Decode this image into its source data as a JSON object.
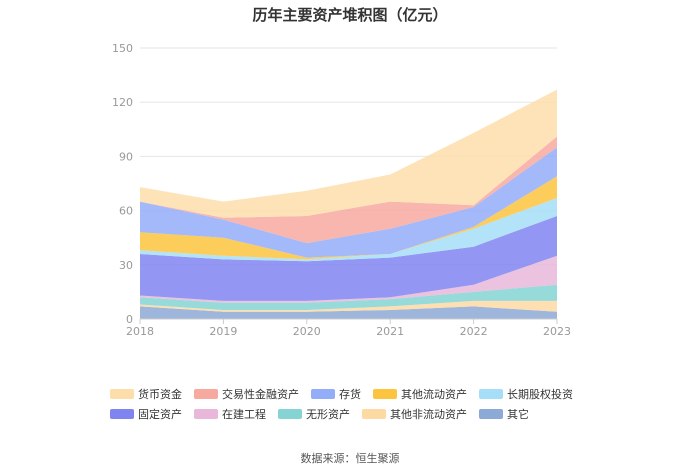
{
  "chart_data": {
    "type": "area",
    "stacked": true,
    "title": "历年主要资产堆积图（亿元）",
    "x": [
      "2018",
      "2019",
      "2020",
      "2021",
      "2022",
      "2023"
    ],
    "y_ticks": [
      "0",
      "30",
      "60",
      "90",
      "120",
      "150"
    ],
    "ylim": [
      0,
      150
    ],
    "legend_position": "bottom",
    "series": [
      {
        "name": "其它",
        "color": "#8DA9D6",
        "values": [
          7,
          4,
          4,
          5,
          7,
          4
        ]
      },
      {
        "name": "其他非流动资产",
        "color": "#FDD9A3",
        "values": [
          1,
          1,
          1,
          2,
          3,
          6
        ]
      },
      {
        "name": "无形资产",
        "color": "#85D3D3",
        "values": [
          4,
          4,
          4,
          4,
          5,
          9
        ]
      },
      {
        "name": "在建工程",
        "color": "#E8B7D9",
        "values": [
          1,
          1,
          1,
          1,
          4,
          16
        ]
      },
      {
        "name": "固定资产",
        "color": "#8084F0",
        "values": [
          23,
          23,
          22,
          22,
          21,
          22
        ]
      },
      {
        "name": "长期股权投资",
        "color": "#A6DEF8",
        "values": [
          2,
          2,
          1,
          2,
          10,
          10
        ]
      },
      {
        "name": "其他流动资产",
        "color": "#FDC440",
        "values": [
          10,
          10,
          1,
          0,
          1,
          12
        ]
      },
      {
        "name": "存货",
        "color": "#93ADF8",
        "values": [
          17,
          10,
          8,
          14,
          11,
          16
        ]
      },
      {
        "name": "交易性金融资产",
        "color": "#F7A9A0",
        "values": [
          0,
          1,
          15,
          15,
          1,
          6
        ]
      },
      {
        "name": "货币资金",
        "color": "#FDDEAA",
        "values": [
          8,
          9,
          14,
          15,
          40,
          26
        ]
      }
    ],
    "legend_order": [
      "货币资金",
      "交易性金融资产",
      "存货",
      "其他流动资产",
      "长期股权投资",
      "固定资产",
      "在建工程",
      "无形资产",
      "其他非流动资产",
      "其它"
    ]
  },
  "source": "数据来源：恒生聚源"
}
